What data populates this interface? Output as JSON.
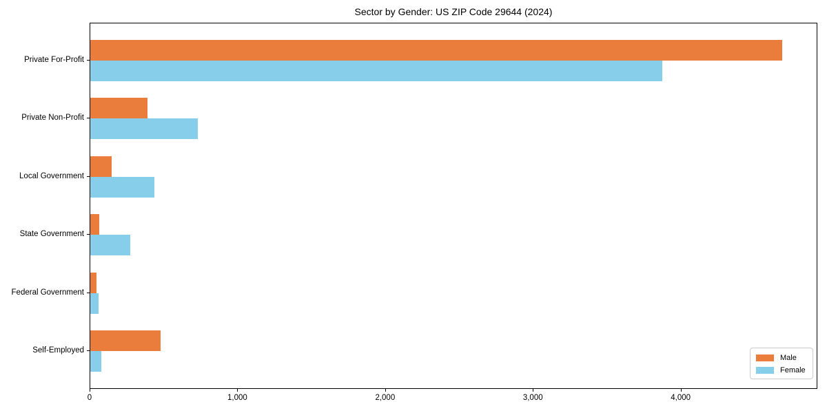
{
  "chart_data": {
    "type": "bar",
    "orientation": "horizontal",
    "title": "Sector by Gender: US ZIP Code 29644 (2024)",
    "xlabel": "",
    "ylabel": "",
    "categories": [
      "Private For-Profit",
      "Private Non-Profit",
      "Local Government",
      "State Government",
      "Federal Government",
      "Self-Employed"
    ],
    "series": [
      {
        "name": "Male",
        "color": "#EB7D3C",
        "values": [
          4690,
          390,
          145,
          60,
          42,
          475
        ]
      },
      {
        "name": "Female",
        "color": "#87CEEB",
        "values": [
          3880,
          730,
          435,
          270,
          55,
          75
        ]
      }
    ],
    "xlim": [
      0,
      4925
    ],
    "x_ticks": [
      0,
      1000,
      2000,
      3000,
      4000
    ],
    "x_tick_labels": [
      "0",
      "1,000",
      "2,000",
      "3,000",
      "4,000"
    ],
    "grid": false,
    "legend_position": "lower right"
  }
}
